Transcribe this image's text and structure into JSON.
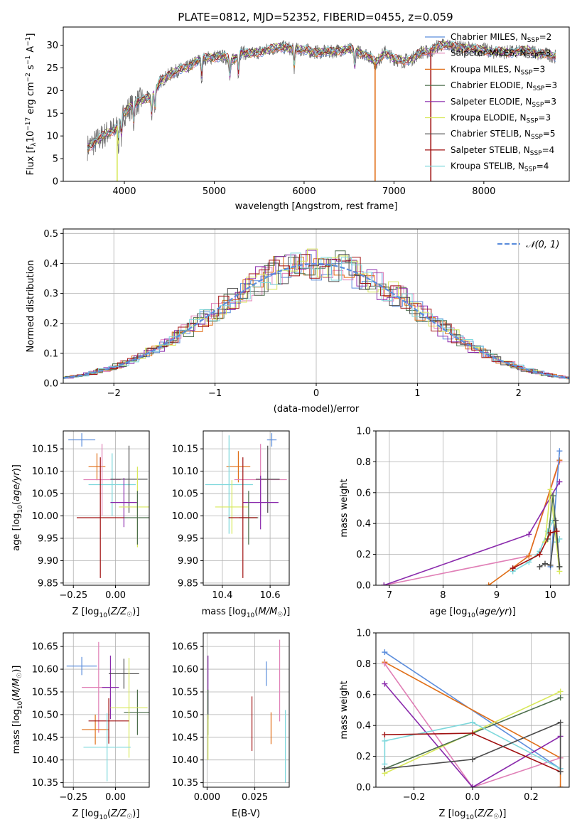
{
  "title": "PLATE=0812, MJD=52352, FIBERID=0455, z=0.059",
  "colors": {
    "Chabrier MILES": "#5b8ddc",
    "Salpeter MILES": "#e07fb6",
    "Kroupa MILES": "#e06e16",
    "Chabrier ELODIE": "#4c6e4c",
    "Salpeter ELODIE": "#8a2aac",
    "Kroupa ELODIE": "#d8e85a",
    "Chabrier STELIB": "#4a4a4a",
    "Salpeter STELIB": "#a01010",
    "Kroupa STELIB": "#7ed8dc",
    "data": "#6e6e6e"
  },
  "chart_data": [
    {
      "id": "spectrum",
      "type": "line",
      "xlabel": "wavelength [Angstrom, rest frame]",
      "ylabel": "Flux [f_λ 10^-17 erg cm^-2 s^-1 A^-1]",
      "xlim": [
        3320,
        8950
      ],
      "ylim": [
        0,
        34
      ],
      "xticks": [
        4000,
        5000,
        6000,
        7000,
        8000
      ],
      "yticks": [
        0,
        5,
        10,
        15,
        20,
        25,
        30
      ],
      "grid": false,
      "legend_position": "top-right",
      "legend": [
        "Chabrier MILES, N_SSP=2",
        "Salpeter MILES, N_SSP=3",
        "Kroupa MILES, N_SSP=3",
        "Chabrier ELODIE, N_SSP=3",
        "Salpeter ELODIE, N_SSP=3",
        "Kroupa ELODIE, N_SSP=3",
        "Chabrier STELIB, N_SSP=5",
        "Salpeter STELIB, N_SSP=4",
        "Kroupa STELIB, N_SSP=4"
      ],
      "legend_series": [
        "Chabrier MILES",
        "Salpeter MILES",
        "Kroupa MILES",
        "Chabrier ELODIE",
        "Salpeter ELODIE",
        "Kroupa ELODIE",
        "Chabrier STELIB",
        "Salpeter STELIB",
        "Kroupa STELIB"
      ],
      "continuum": {
        "x": [
          3590,
          3700,
          3800,
          3900,
          4000,
          4100,
          4200,
          4300,
          4400,
          4500,
          4600,
          4700,
          4800,
          4900,
          5000,
          5100,
          5200,
          5300,
          5400,
          5500,
          5600,
          5700,
          5800,
          5900,
          6000,
          6100,
          6200,
          6300,
          6400,
          6500,
          6600,
          6700,
          6800,
          6900,
          7000,
          7100,
          7200,
          7300,
          7400,
          7500,
          7600,
          7700,
          7800,
          7900,
          8000,
          8100,
          8200,
          8300,
          8400,
          8500,
          8600,
          8700,
          8800
        ],
        "y": [
          7.5,
          9.0,
          10.5,
          11.5,
          15.0,
          17.0,
          18.0,
          18.5,
          22.0,
          23.5,
          24.5,
          25.0,
          26.5,
          27.0,
          27.5,
          27.5,
          26.5,
          28.5,
          28.0,
          28.5,
          29.0,
          29.5,
          29.5,
          29.0,
          29.0,
          28.5,
          28.5,
          28.5,
          29.0,
          29.0,
          28.5,
          28.0,
          26.0,
          28.5,
          27.0,
          26.5,
          27.0,
          28.5,
          28.5,
          30.0,
          30.0,
          29.5,
          29.5,
          29.0,
          29.0,
          28.5,
          28.5,
          28.5,
          28.5,
          29.0,
          28.0,
          28.0,
          27.5
        ]
      },
      "features": {
        "absorption_lines_x": [
          3934,
          3969,
          4102,
          4304,
          4340,
          4861,
          5175,
          5270,
          5890,
          6563
        ],
        "spikes_x": [
          3920,
          6790,
          7410
        ]
      }
    },
    {
      "id": "residuals",
      "type": "area",
      "xlabel": "(data-model)/error",
      "ylabel": "Normed distribution",
      "xlim": [
        -2.5,
        2.5
      ],
      "ylim": [
        0,
        0.515
      ],
      "xticks": [
        -2,
        -1,
        0,
        1,
        2
      ],
      "yticks": [
        0.0,
        0.1,
        0.2,
        0.3,
        0.4,
        0.5
      ],
      "grid": true,
      "legend_position": "top-right",
      "legend": [
        "𝒩(0, 1)"
      ],
      "reference_curve": {
        "name": "𝒩(0, 1)",
        "color": "#5b8ddc",
        "dashed": true
      },
      "histogram_bin_width": 0.1
    },
    {
      "id": "age_vs_Z",
      "type": "scatter",
      "xlabel": "Z [log10(Z/Z☉)]",
      "ylabel": "age  [log10(age/yr)]",
      "xlim": [
        -0.31,
        0.2
      ],
      "ylim": [
        9.845,
        10.19
      ],
      "xticks": [
        -0.25,
        0.0
      ],
      "xticklabels": [
        "−0.25",
        "0.00"
      ],
      "yticks": [
        9.85,
        9.9,
        9.95,
        10.0,
        10.05,
        10.1,
        10.15
      ],
      "grid": true,
      "points": [
        {
          "series": "Chabrier MILES",
          "x": -0.2,
          "xerr": 0.08,
          "y": 10.17,
          "yerr": 0.015
        },
        {
          "series": "Kroupa MILES",
          "x": -0.11,
          "xerr": 0.05,
          "y": 10.11,
          "yerr": 0.03
        },
        {
          "series": "Salpeter MILES",
          "x": -0.08,
          "xerr": 0.11,
          "y": 10.081,
          "yerr": 0.08
        },
        {
          "series": "Kroupa STELIB",
          "x": -0.02,
          "xerr": 0.14,
          "y": 10.07,
          "yerr": 0.07
        },
        {
          "series": "Chabrier STELIB",
          "x": 0.08,
          "xerr": 0.11,
          "y": 10.082,
          "yerr": 0.075
        },
        {
          "series": "Salpeter ELODIE",
          "x": 0.05,
          "xerr": 0.08,
          "y": 10.03,
          "yerr": 0.055
        },
        {
          "series": "Kroupa ELODIE",
          "x": 0.13,
          "xerr": 0.11,
          "y": 10.02,
          "yerr": 0.09
        },
        {
          "series": "Chabrier ELODIE",
          "x": 0.13,
          "xerr": 0.08,
          "y": 9.996,
          "yerr": 0.06
        },
        {
          "series": "Salpeter STELIB",
          "x": -0.09,
          "xerr": 0.14,
          "y": 9.996,
          "yerr": 0.135
        }
      ]
    },
    {
      "id": "age_vs_mass",
      "type": "scatter",
      "xlabel": "mass [log10(M/M☉)]",
      "ylabel": "",
      "xlim": [
        10.32,
        10.68
      ],
      "ylim": [
        9.845,
        10.19
      ],
      "xticks": [
        10.4,
        10.6
      ],
      "yticks": [
        9.85,
        9.9,
        9.95,
        10.0,
        10.05,
        10.1,
        10.15
      ],
      "grid": true,
      "points": [
        {
          "series": "Chabrier MILES",
          "x": 10.607,
          "xerr": 0.02,
          "y": 10.17,
          "yerr": 0.015
        },
        {
          "series": "Kroupa MILES",
          "x": 10.467,
          "xerr": 0.05,
          "y": 10.11,
          "yerr": 0.035
        },
        {
          "series": "Salpeter MILES",
          "x": 10.56,
          "xerr": 0.11,
          "y": 10.081,
          "yerr": 0.08
        },
        {
          "series": "Kroupa STELIB",
          "x": 10.428,
          "xerr": 0.1,
          "y": 10.07,
          "yerr": 0.11
        },
        {
          "series": "Chabrier STELIB",
          "x": 10.59,
          "xerr": 0.05,
          "y": 10.082,
          "yerr": 0.075
        },
        {
          "series": "Salpeter ELODIE",
          "x": 10.56,
          "xerr": 0.075,
          "y": 10.03,
          "yerr": 0.06
        },
        {
          "series": "Kroupa ELODIE",
          "x": 10.44,
          "xerr": 0.07,
          "y": 10.02,
          "yerr": 0.06
        },
        {
          "series": "Chabrier ELODIE",
          "x": 10.51,
          "xerr": 0.04,
          "y": 9.996,
          "yerr": 0.06
        },
        {
          "series": "Salpeter STELIB",
          "x": 10.486,
          "xerr": 0.06,
          "y": 9.996,
          "yerr": 0.135
        }
      ]
    },
    {
      "id": "weight_vs_age",
      "type": "line",
      "xlabel": "age  [log10(age/yr)]",
      "ylabel": "mass weight",
      "xlim": [
        6.75,
        10.35
      ],
      "ylim": [
        0,
        1.0
      ],
      "xticks": [
        7,
        8,
        9,
        10
      ],
      "yticks": [
        0.0,
        0.2,
        0.4,
        0.6,
        0.8,
        1.0
      ],
      "grid": true,
      "series": [
        {
          "name": "Kroupa STELIB",
          "x": [
            9.3,
            9.6,
            9.8,
            9.95,
            10.05,
            10.12,
            10.17
          ],
          "y": [
            0.09,
            0.15,
            0.22,
            0.35,
            0.42,
            0.28,
            0.3
          ]
        },
        {
          "name": "Salpeter MILES",
          "x": [
            6.9,
            9.6,
            10.17
          ],
          "y": [
            0.0,
            0.19,
            0.8
          ]
        },
        {
          "name": "Kroupa MILES",
          "x": [
            8.85,
            9.6,
            10.17
          ],
          "y": [
            0.0,
            0.19,
            0.81
          ]
        },
        {
          "name": "Chabrier MILES",
          "x": [
            10.0,
            10.17
          ],
          "y": [
            0.12,
            0.87
          ]
        },
        {
          "name": "Salpeter ELODIE",
          "x": [
            6.9,
            9.6,
            10.17
          ],
          "y": [
            0.0,
            0.33,
            0.67
          ]
        },
        {
          "name": "Kroupa ELODIE",
          "x": [
            9.9,
            10.0,
            10.17
          ],
          "y": [
            0.28,
            0.62,
            0.09
          ]
        },
        {
          "name": "Chabrier ELODIE",
          "x": [
            9.95,
            10.05,
            10.17
          ],
          "y": [
            0.3,
            0.58,
            0.12
          ]
        },
        {
          "name": "Chabrier STELIB",
          "x": [
            9.8,
            9.9,
            10.0,
            10.1,
            10.17
          ],
          "y": [
            0.12,
            0.14,
            0.13,
            0.42,
            0.12
          ]
        },
        {
          "name": "Salpeter STELIB",
          "x": [
            9.3,
            9.8,
            10.0,
            10.12
          ],
          "y": [
            0.11,
            0.2,
            0.34,
            0.35
          ]
        }
      ]
    },
    {
      "id": "mass_vs_Z",
      "type": "scatter",
      "xlabel": "Z [log10(Z/Z☉)]",
      "ylabel": "mass [log10(M/M☉)]",
      "xlim": [
        -0.31,
        0.2
      ],
      "ylim": [
        10.34,
        10.68
      ],
      "xticks": [
        -0.25,
        0.0
      ],
      "xticklabels": [
        "−0.25",
        "0.00"
      ],
      "yticks": [
        10.35,
        10.4,
        10.45,
        10.5,
        10.55,
        10.6,
        10.65
      ],
      "grid": true,
      "points": [
        {
          "series": "Chabrier MILES",
          "x": -0.2,
          "xerr": 0.09,
          "y": 10.607,
          "yerr": 0.02
        },
        {
          "series": "Salpeter MILES",
          "x": -0.1,
          "xerr": 0.1,
          "y": 10.56,
          "yerr": 0.1
        },
        {
          "series": "Salpeter ELODIE",
          "x": -0.03,
          "xerr": 0.05,
          "y": 10.56,
          "yerr": 0.07
        },
        {
          "series": "Chabrier STELIB",
          "x": 0.05,
          "xerr": 0.09,
          "y": 10.59,
          "yerr": 0.033
        },
        {
          "series": "Chabrier ELODIE",
          "x": 0.13,
          "xerr": 0.08,
          "y": 10.505,
          "yerr": 0.05
        },
        {
          "series": "Kroupa ELODIE",
          "x": 0.08,
          "xerr": 0.11,
          "y": 10.515,
          "yerr": 0.11
        },
        {
          "series": "Kroupa MILES",
          "x": -0.12,
          "xerr": 0.08,
          "y": 10.467,
          "yerr": 0.033
        },
        {
          "series": "Salpeter STELIB",
          "x": -0.04,
          "xerr": 0.12,
          "y": 10.486,
          "yerr": 0.05
        },
        {
          "series": "Kroupa STELIB",
          "x": -0.05,
          "xerr": 0.14,
          "y": 10.428,
          "yerr": 0.075
        }
      ]
    },
    {
      "id": "mass_vs_EBV",
      "type": "scatter",
      "xlabel": "E(B-V)",
      "ylabel": "",
      "xlim": [
        -0.002,
        0.043
      ],
      "ylim": [
        10.34,
        10.68
      ],
      "xticks": [
        0.0,
        0.025
      ],
      "xticklabels": [
        "0.000",
        "0.025"
      ],
      "yticks": [
        10.35,
        10.4,
        10.45,
        10.5,
        10.55,
        10.6,
        10.65
      ],
      "grid": true,
      "points": [
        {
          "series": "Salpeter ELODIE",
          "x": 0.0005,
          "y": 10.56,
          "yerr": 0.07
        },
        {
          "series": "Chabrier ELODIE",
          "x": 0.0005,
          "y": 10.505,
          "yerr": 0.05
        },
        {
          "series": "Kroupa ELODIE",
          "x": 0.0005,
          "y": 10.45,
          "yerr": 0.05
        },
        {
          "series": "Chabrier MILES",
          "x": 0.031,
          "y": 10.59,
          "yerr": 0.027
        },
        {
          "series": "Salpeter STELIB",
          "x": 0.0235,
          "y": 10.48,
          "yerr": 0.06
        },
        {
          "series": "Kroupa MILES",
          "x": 0.0335,
          "y": 10.47,
          "yerr": 0.035
        },
        {
          "series": "Salpeter MILES",
          "x": 0.038,
          "y": 10.575,
          "yerr": 0.09
        },
        {
          "series": "Kroupa STELIB",
          "x": 0.041,
          "y": 10.43,
          "yerr": 0.08
        }
      ]
    },
    {
      "id": "weight_vs_Z",
      "type": "line",
      "xlabel": "Z [log10(Z/Z☉)]",
      "ylabel": "mass weight",
      "xlim": [
        -0.33,
        0.33
      ],
      "ylim": [
        0,
        1.0
      ],
      "xticks": [
        -0.2,
        0.0,
        0.2
      ],
      "xticklabels": [
        "−0.2",
        "0.0",
        "0.2"
      ],
      "yticks": [
        0.0,
        0.2,
        0.4,
        0.6,
        0.8,
        1.0
      ],
      "grid": true,
      "series": [
        {
          "name": "Chabrier MILES",
          "x": [
            -0.3,
            0.3
          ],
          "y": [
            0.875,
            0.12
          ]
        },
        {
          "name": "Kroupa MILES",
          "x": [
            -0.3,
            0.3,
            0.3
          ],
          "y": [
            0.81,
            0.19,
            0.0
          ]
        },
        {
          "name": "Salpeter MILES",
          "x": [
            -0.3,
            0.0,
            0.3
          ],
          "y": [
            0.8,
            0.0,
            0.19
          ]
        },
        {
          "name": "Salpeter ELODIE",
          "x": [
            -0.3,
            0.0,
            0.3
          ],
          "y": [
            0.67,
            0.0,
            0.33
          ]
        },
        {
          "name": "Kroupa ELODIE",
          "x": [
            -0.3,
            0.3
          ],
          "y": [
            0.09,
            0.62
          ]
        },
        {
          "name": "Chabrier ELODIE",
          "x": [
            -0.3,
            0.3
          ],
          "y": [
            0.12,
            0.58
          ]
        },
        {
          "name": "Kroupa STELIB",
          "x": [
            -0.3,
            -0.3,
            0.0,
            0.3
          ],
          "y": [
            0.15,
            0.3,
            0.42,
            0.12
          ]
        },
        {
          "name": "Salpeter STELIB",
          "x": [
            -0.3,
            0.0,
            0.3
          ],
          "y": [
            0.34,
            0.35,
            0.1
          ]
        },
        {
          "name": "Chabrier STELIB",
          "x": [
            -0.3,
            0.0,
            0.3,
            0.3
          ],
          "y": [
            0.12,
            0.18,
            0.42,
            0.1
          ]
        }
      ]
    }
  ]
}
